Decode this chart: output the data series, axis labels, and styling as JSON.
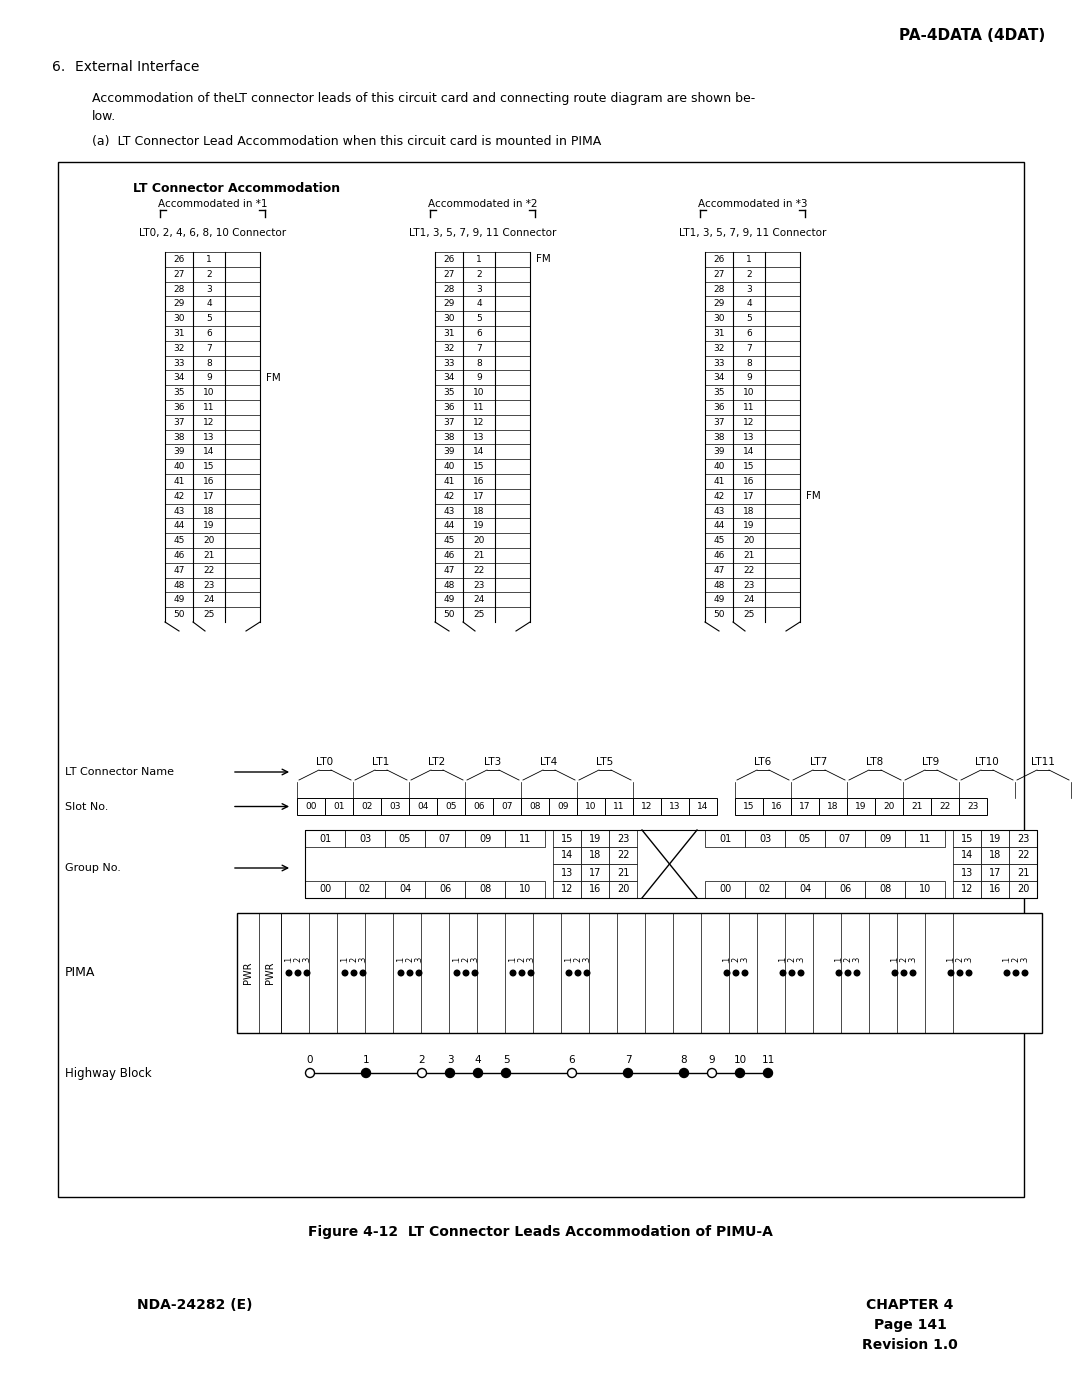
{
  "page_header": "PA-4DATA (4DAT)",
  "section_num": "6.",
  "section_title": "External Interface",
  "body_text1": "Accommodation of theLT connector leads of this circuit card and connecting route diagram are shown be-",
  "body_text2": "low.",
  "sub_item": "(a)  LT Connector Lead Accommodation when this circuit card is mounted in PIMA",
  "box_title": "LT Connector Accommodation",
  "acc_labels": [
    "Accommodated in *1",
    "Accommodated in *2",
    "Accommodated in *3"
  ],
  "conn_labels": [
    "LT0, 2, 4, 6, 8, 10 Connector",
    "LT1, 3, 5, 7, 9, 11 Connector",
    "LT1, 3, 5, 7, 9, 11 Connector"
  ],
  "table_left_col": [
    "26",
    "27",
    "28",
    "29",
    "30",
    "31",
    "32",
    "33",
    "34",
    "35",
    "36",
    "37",
    "38",
    "39",
    "40",
    "41",
    "42",
    "43",
    "44",
    "45",
    "46",
    "47",
    "48",
    "49",
    "50"
  ],
  "table_right_col": [
    "1",
    "2",
    "3",
    "4",
    "5",
    "6",
    "7",
    "8",
    "9",
    "10",
    "11",
    "12",
    "13",
    "14",
    "15",
    "16",
    "17",
    "18",
    "19",
    "20",
    "21",
    "22",
    "23",
    "24",
    "25"
  ],
  "fm_rows": [
    8,
    0,
    16
  ],
  "lt_names": [
    "LT0",
    "LT1",
    "LT2",
    "LT3",
    "LT4",
    "LT5",
    "",
    "LT6",
    "LT7",
    "LT8",
    "LT9",
    "LT10",
    "LT11"
  ],
  "slot_numbers": [
    "00",
    "01",
    "02",
    "03",
    "04",
    "05",
    "06",
    "07",
    "08",
    "09",
    "10",
    "11",
    "12",
    "13",
    "14",
    "15",
    "16",
    "17",
    "18",
    "19",
    "20",
    "21",
    "22",
    "23"
  ],
  "grp_left_top": [
    "01",
    "03",
    "05",
    "07",
    "09",
    "11"
  ],
  "grp_right_top_cols": [
    [
      "15",
      "19",
      "23"
    ],
    [
      "14",
      "18",
      "22"
    ],
    [
      "13",
      "17",
      "21"
    ],
    [
      "12",
      "16",
      "20"
    ]
  ],
  "grp_left_bot": [
    "00",
    "02",
    "04",
    "06",
    "08",
    "10"
  ],
  "highway_blocks": [
    "0",
    "1",
    "2",
    "3",
    "4",
    "5",
    "6",
    "7",
    "8",
    "9",
    "10",
    "11"
  ],
  "hw_filled": [
    false,
    true,
    false,
    true,
    true,
    true,
    false,
    true,
    true,
    false,
    true,
    true,
    false,
    true,
    true,
    true,
    false,
    true,
    true,
    false,
    true,
    true,
    true,
    true
  ],
  "figure_caption": "Figure 4-12  LT Connector Leads Accommodation of PIMU-A",
  "footer_left": "NDA-24282 (E)",
  "footer_right1": "CHAPTER 4",
  "footer_right2": "Page 141",
  "footer_right3": "Revision 1.0"
}
